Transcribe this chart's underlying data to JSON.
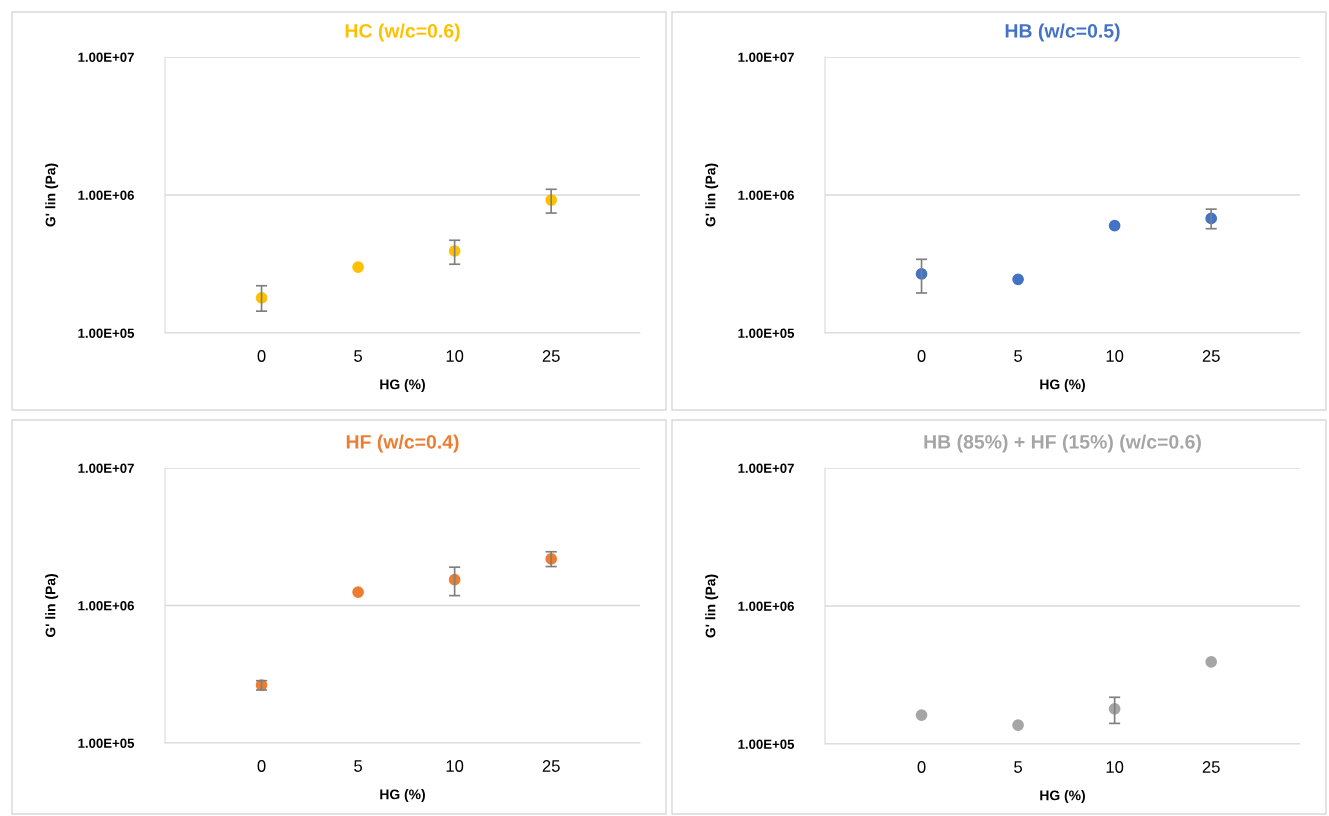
{
  "chart_data": [
    {
      "type": "scatter",
      "title": "HC (w/c=0.6)",
      "xlabel": "HG (%)",
      "ylabel": "G' lin (Pa)",
      "categories": [
        "0",
        "5",
        "10",
        "25"
      ],
      "color": "#ffc000",
      "values": [
        180000,
        300000,
        393000,
        920000
      ],
      "errors": [
        [
          144000,
          220000
        ],
        null,
        [
          315000,
          470000
        ],
        [
          740000,
          1100000
        ]
      ],
      "log": "y",
      "ylim": [
        100000,
        10000000
      ],
      "yticks": [
        {
          "value": 100000,
          "label": "1.00E+05"
        },
        {
          "value": 1000000,
          "label": "1.00E+06"
        },
        {
          "value": 10000000,
          "label": "1.00E+07"
        }
      ],
      "grid": "y",
      "marker": "circle"
    },
    {
      "type": "scatter",
      "title": "HB (w/c=0.5)",
      "xlabel": "HG (%)",
      "ylabel": "G' lin (Pa)",
      "categories": [
        "0",
        "5",
        "10",
        "25"
      ],
      "color": "#4472c4",
      "values": [
        268000,
        245000,
        600000,
        676000
      ],
      "errors": [
        [
          195000,
          342000
        ],
        null,
        null,
        [
          570000,
          790000
        ]
      ],
      "log": "y",
      "ylim": [
        100000,
        10000000
      ],
      "yticks": [
        {
          "value": 100000,
          "label": "1.00E+05"
        },
        {
          "value": 1000000,
          "label": "1.00E+06"
        },
        {
          "value": 10000000,
          "label": "1.00E+07"
        }
      ],
      "grid": "y",
      "marker": "circle"
    },
    {
      "type": "scatter",
      "title": "HF (w/c=0.4)",
      "xlabel": "HG (%)",
      "ylabel": "G' lin (Pa)",
      "categories": [
        "0",
        "5",
        "10",
        "25"
      ],
      "color": "#ed7d31",
      "values": [
        264000,
        1250000,
        1540000,
        2180000
      ],
      "errors": [
        [
          243000,
          284000
        ],
        null,
        [
          1180000,
          1900000
        ],
        [
          1920000,
          2460000
        ]
      ],
      "log": "y",
      "ylim": [
        100000,
        10000000
      ],
      "yticks": [
        {
          "value": 100000,
          "label": "1.00E+05"
        },
        {
          "value": 1000000,
          "label": "1.00E+06"
        },
        {
          "value": 10000000,
          "label": "1.00E+07"
        }
      ],
      "grid": "y",
      "marker": "circle"
    },
    {
      "type": "scatter",
      "title": "HB (85%) + HF (15%) (w/c=0.6)",
      "xlabel": "HG (%)",
      "ylabel": "G' lin (Pa)",
      "categories": [
        "0",
        "5",
        "10",
        "25"
      ],
      "color": "#a5a5a5",
      "values": [
        162000,
        137000,
        180000,
        394000
      ],
      "errors": [
        null,
        null,
        [
          141000,
          218000
        ],
        null
      ],
      "log": "y",
      "ylim": [
        100000,
        10000000
      ],
      "yticks": [
        {
          "value": 100000,
          "label": "1.00E+05"
        },
        {
          "value": 1000000,
          "label": "1.00E+06"
        },
        {
          "value": 10000000,
          "label": "1.00E+07"
        }
      ],
      "grid": "y",
      "marker": "circle"
    }
  ]
}
